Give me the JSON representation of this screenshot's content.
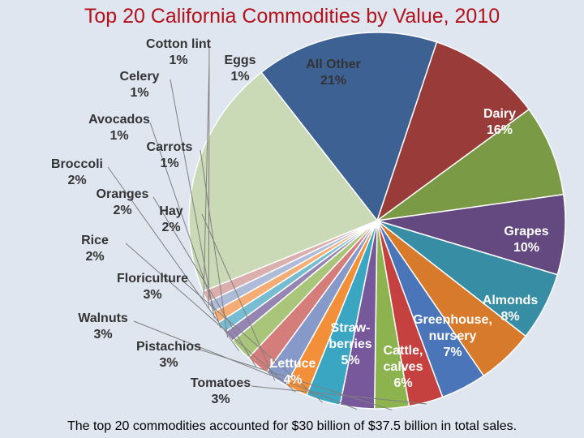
{
  "title": "Top 20 California Commodities by Value, 2010",
  "caption": "The top 20 commodities accounted for $30 billion of $37.5 billion in total sales.",
  "colors": {
    "background": "#dfe6f0",
    "title": "#b3121b"
  },
  "chart_data": {
    "type": "pie",
    "title": "Top 20 California Commodities by Value, 2010",
    "unit": "%",
    "slices": [
      {
        "name": "Dairy",
        "label_lines": [
          "Dairy",
          "16%"
        ],
        "value": 16,
        "color": "#3d6193"
      },
      {
        "name": "Grapes",
        "label_lines": [
          "Grapes",
          "10%"
        ],
        "value": 10,
        "color": "#983b39"
      },
      {
        "name": "Almonds",
        "label_lines": [
          "Almonds",
          "8%"
        ],
        "value": 8,
        "color": "#7b9a45"
      },
      {
        "name": "Greenhouse, nursery",
        "label_lines": [
          "Greenhouse,",
          "nursery",
          "7%"
        ],
        "value": 7,
        "color": "#63497f"
      },
      {
        "name": "Cattle, calves",
        "label_lines": [
          "Cattle,",
          "calves",
          "6%"
        ],
        "value": 6,
        "color": "#378da4"
      },
      {
        "name": "Strawberries",
        "label_lines": [
          "Straw-",
          "berries",
          "5%"
        ],
        "value": 5,
        "color": "#d77a2c"
      },
      {
        "name": "Lettuce",
        "label_lines": [
          "Lettuce",
          "4%"
        ],
        "value": 4,
        "color": "#4a75b8"
      },
      {
        "name": "Tomatoes",
        "label_lines": [
          "Tomatoes",
          "3%"
        ],
        "value": 3,
        "color": "#c4413f"
      },
      {
        "name": "Pistachios",
        "label_lines": [
          "Pistachios",
          "3%"
        ],
        "value": 3,
        "color": "#8cb34e"
      },
      {
        "name": "Walnuts",
        "label_lines": [
          "Walnuts",
          "3%"
        ],
        "value": 3,
        "color": "#77589b"
      },
      {
        "name": "Floriculture",
        "label_lines": [
          "Floriculture",
          "3%"
        ],
        "value": 3,
        "color": "#3aa6c2"
      },
      {
        "name": "Rice",
        "label_lines": [
          "Rice",
          "2%"
        ],
        "value": 2,
        "color": "#f38f38"
      },
      {
        "name": "Hay",
        "label_lines": [
          "Hay",
          "2%"
        ],
        "value": 2,
        "color": "#8799c9"
      },
      {
        "name": "Oranges",
        "label_lines": [
          "Oranges",
          "2%"
        ],
        "value": 2,
        "color": "#d47d7b"
      },
      {
        "name": "Broccoli",
        "label_lines": [
          "Broccoli",
          "2%"
        ],
        "value": 2,
        "color": "#a9c57a"
      },
      {
        "name": "Carrots",
        "label_lines": [
          "Carrots",
          "1%"
        ],
        "value": 1,
        "color": "#9684b3"
      },
      {
        "name": "Avocados",
        "label_lines": [
          "Avocados",
          "1%"
        ],
        "value": 1,
        "color": "#77bdd1"
      },
      {
        "name": "Celery",
        "label_lines": [
          "Celery",
          "1%"
        ],
        "value": 1,
        "color": "#f6ad75"
      },
      {
        "name": "Cotton lint",
        "label_lines": [
          "Cotton lint",
          "1%"
        ],
        "value": 1,
        "color": "#aebbd9"
      },
      {
        "name": "Eggs",
        "label_lines": [
          "Eggs",
          "1%"
        ],
        "value": 1,
        "color": "#dbafae"
      },
      {
        "name": "All Other",
        "label_lines": [
          "All Other",
          "21%"
        ],
        "value": 21,
        "color": "#cad9b6"
      }
    ]
  }
}
